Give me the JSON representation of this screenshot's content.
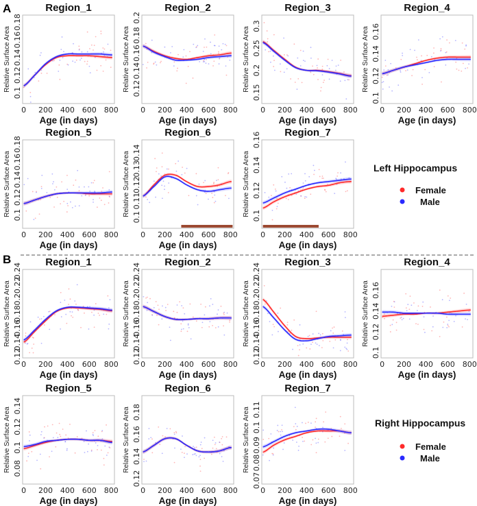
{
  "sections": [
    {
      "label": "A",
      "legend": {
        "title": "Left Hippocampus",
        "items": [
          {
            "label": "Female",
            "color": "#ff2a2a"
          },
          {
            "label": "Male",
            "color": "#2a2aff"
          }
        ]
      }
    },
    {
      "label": "B",
      "legend": {
        "title": "Right Hippocampus",
        "items": [
          {
            "label": "Female",
            "color": "#ff2a2a"
          },
          {
            "label": "Male",
            "color": "#2a2aff"
          }
        ]
      }
    }
  ],
  "chart_data": [
    {
      "type": "line",
      "section": "A",
      "title": "Region_1",
      "xlabel": "Age (in days)",
      "ylabel": "Relative Surface Area",
      "xlim": [
        -10,
        830
      ],
      "xticks": [
        0,
        200,
        400,
        600,
        800
      ],
      "ylim": [
        0.088,
        0.188
      ],
      "yticks": [
        "0.1",
        "0.12",
        "0.14",
        "0.16",
        "0.18"
      ],
      "x": [
        0,
        100,
        200,
        300,
        400,
        500,
        600,
        700,
        800
      ],
      "series": [
        {
          "name": "Female",
          "values": [
            0.108,
            0.12,
            0.132,
            0.14,
            0.142,
            0.142,
            0.142,
            0.141,
            0.14
          ]
        },
        {
          "name": "Male",
          "values": [
            0.108,
            0.12,
            0.133,
            0.141,
            0.144,
            0.144,
            0.144,
            0.144,
            0.143
          ]
        }
      ],
      "significance": null
    },
    {
      "type": "line",
      "section": "A",
      "title": "Region_2",
      "xlabel": "Age (in days)",
      "ylabel": "Relative Surface Area",
      "xlim": [
        -10,
        830
      ],
      "xticks": [
        0,
        200,
        400,
        600,
        800
      ],
      "ylim": [
        0.103,
        0.203
      ],
      "yticks": [
        "0.12",
        "0.14",
        "0.16",
        "0.18",
        "0.2"
      ],
      "x": [
        0,
        100,
        200,
        300,
        400,
        500,
        600,
        700,
        800
      ],
      "series": [
        {
          "name": "Female",
          "values": [
            0.168,
            0.162,
            0.157,
            0.154,
            0.153,
            0.155,
            0.157,
            0.158,
            0.16
          ]
        },
        {
          "name": "Male",
          "values": [
            0.168,
            0.161,
            0.156,
            0.152,
            0.152,
            0.153,
            0.155,
            0.156,
            0.157
          ]
        }
      ],
      "significance": null
    },
    {
      "type": "line",
      "section": "A",
      "title": "Region_3",
      "xlabel": "Age (in days)",
      "ylabel": "Relative Surface Area",
      "xlim": [
        -10,
        830
      ],
      "xticks": [
        0,
        200,
        400,
        600,
        800
      ],
      "ylim": [
        0.125,
        0.325
      ],
      "yticks": [
        "0.15",
        "0.2",
        "0.25",
        "0.3"
      ],
      "x": [
        0,
        100,
        200,
        300,
        400,
        500,
        600,
        700,
        800
      ],
      "series": [
        {
          "name": "Female",
          "values": [
            0.265,
            0.245,
            0.225,
            0.207,
            0.2,
            0.2,
            0.197,
            0.193,
            0.188
          ]
        },
        {
          "name": "Male",
          "values": [
            0.263,
            0.243,
            0.223,
            0.206,
            0.2,
            0.199,
            0.196,
            0.192,
            0.187
          ]
        }
      ],
      "significance": null
    },
    {
      "type": "line",
      "section": "A",
      "title": "Region_4",
      "xlabel": "Age (in days)",
      "ylabel": "Relative Surface Area",
      "xlim": [
        -10,
        830
      ],
      "xticks": [
        0,
        200,
        400,
        600,
        800
      ],
      "ylim": [
        0.095,
        0.175
      ],
      "yticks": [
        "0.1",
        "0.12",
        "0.14",
        "0.16"
      ],
      "x": [
        0,
        100,
        200,
        300,
        400,
        500,
        600,
        700,
        800
      ],
      "series": [
        {
          "name": "Female",
          "values": [
            0.122,
            0.125,
            0.128,
            0.131,
            0.134,
            0.136,
            0.137,
            0.137,
            0.137
          ]
        },
        {
          "name": "Male",
          "values": [
            0.122,
            0.125,
            0.128,
            0.13,
            0.132,
            0.134,
            0.135,
            0.135,
            0.135
          ]
        }
      ],
      "significance": null
    },
    {
      "type": "line",
      "section": "A",
      "title": "Region_5",
      "xlabel": "Age (in days)",
      "ylabel": "Relative Surface Area",
      "xlim": [
        -10,
        830
      ],
      "xticks": [
        0,
        200,
        400,
        600,
        800
      ],
      "ylim": [
        0.085,
        0.185
      ],
      "yticks": [
        "0.1",
        "0.12",
        "0.14",
        "0.16",
        "0.18"
      ],
      "x": [
        0,
        100,
        200,
        300,
        400,
        500,
        600,
        700,
        800
      ],
      "series": [
        {
          "name": "Female",
          "values": [
            0.113,
            0.117,
            0.121,
            0.124,
            0.125,
            0.125,
            0.124,
            0.124,
            0.124
          ]
        },
        {
          "name": "Male",
          "values": [
            0.113,
            0.117,
            0.121,
            0.124,
            0.125,
            0.125,
            0.125,
            0.125,
            0.126
          ]
        }
      ],
      "significance": null
    },
    {
      "type": "line",
      "section": "A",
      "title": "Region_6",
      "xlabel": "Age (in days)",
      "ylabel": "Relative Surface Area",
      "xlim": [
        -10,
        830
      ],
      "xticks": [
        0,
        200,
        400,
        600,
        800
      ],
      "ylim": [
        0.093,
        0.148
      ],
      "yticks": [
        "0.1",
        "0.11",
        "0.12",
        "0.13",
        "0.14"
      ],
      "x": [
        0,
        100,
        200,
        300,
        400,
        500,
        600,
        700,
        800
      ],
      "series": [
        {
          "name": "Female",
          "values": [
            0.113,
            0.12,
            0.126,
            0.126,
            0.122,
            0.119,
            0.119,
            0.12,
            0.122
          ]
        },
        {
          "name": "Male",
          "values": [
            0.113,
            0.119,
            0.125,
            0.124,
            0.12,
            0.117,
            0.116,
            0.117,
            0.118
          ]
        }
      ],
      "significance": [
        350,
        820
      ]
    },
    {
      "type": "line",
      "section": "A",
      "title": "Region_7",
      "xlabel": "Age (in days)",
      "ylabel": "Relative Surface Area",
      "xlim": [
        -10,
        830
      ],
      "xticks": [
        0,
        200,
        400,
        600,
        800
      ],
      "ylim": [
        0.09,
        0.16
      ],
      "yticks": [
        "0.1",
        "0.12",
        "0.14",
        "0.16"
      ],
      "x": [
        0,
        100,
        200,
        300,
        400,
        500,
        600,
        700,
        800
      ],
      "series": [
        {
          "name": "Female",
          "values": [
            0.106,
            0.111,
            0.115,
            0.118,
            0.121,
            0.123,
            0.124,
            0.126,
            0.127
          ]
        },
        {
          "name": "Male",
          "values": [
            0.11,
            0.114,
            0.118,
            0.121,
            0.124,
            0.126,
            0.127,
            0.128,
            0.129
          ]
        }
      ],
      "significance": [
        0,
        510
      ]
    },
    {
      "type": "line",
      "section": "B",
      "title": "Region_1",
      "xlabel": "Age (in days)",
      "ylabel": "Relative Surface Area",
      "xlim": [
        -10,
        830
      ],
      "xticks": [
        0,
        200,
        400,
        600,
        800
      ],
      "ylim": [
        0.118,
        0.242
      ],
      "yticks": [
        "0.12",
        "0.14",
        "0.16",
        "0.18",
        "0.2",
        "0.22",
        "0.24"
      ],
      "x": [
        0,
        100,
        200,
        300,
        400,
        500,
        600,
        700,
        800
      ],
      "series": [
        {
          "name": "Female",
          "values": [
            0.14,
            0.155,
            0.17,
            0.183,
            0.188,
            0.188,
            0.187,
            0.186,
            0.184
          ]
        },
        {
          "name": "Male",
          "values": [
            0.143,
            0.157,
            0.172,
            0.184,
            0.189,
            0.189,
            0.188,
            0.187,
            0.185
          ]
        }
      ],
      "significance": null
    },
    {
      "type": "line",
      "section": "B",
      "title": "Region_2",
      "xlabel": "Age (in days)",
      "ylabel": "Relative Surface Area",
      "xlim": [
        -10,
        830
      ],
      "xticks": [
        0,
        200,
        400,
        600,
        800
      ],
      "ylim": [
        0.118,
        0.242
      ],
      "yticks": [
        "0.12",
        "0.14",
        "0.16",
        "0.18",
        "0.2",
        "0.22",
        "0.24"
      ],
      "x": [
        0,
        100,
        200,
        300,
        400,
        500,
        600,
        700,
        800
      ],
      "series": [
        {
          "name": "Female",
          "values": [
            0.19,
            0.183,
            0.176,
            0.172,
            0.172,
            0.173,
            0.173,
            0.174,
            0.174
          ]
        },
        {
          "name": "Male",
          "values": [
            0.19,
            0.183,
            0.176,
            0.172,
            0.172,
            0.173,
            0.173,
            0.174,
            0.174
          ]
        }
      ],
      "significance": null
    },
    {
      "type": "line",
      "section": "B",
      "title": "Region_3",
      "xlabel": "Age (in days)",
      "ylabel": "Relative Surface Area",
      "xlim": [
        -10,
        830
      ],
      "xticks": [
        0,
        200,
        400,
        600,
        800
      ],
      "ylim": [
        0.118,
        0.242
      ],
      "yticks": [
        "0.12",
        "0.14",
        "0.16",
        "0.18",
        "0.2",
        "0.22",
        "0.24"
      ],
      "x": [
        0,
        100,
        200,
        300,
        400,
        500,
        600,
        700,
        800
      ],
      "series": [
        {
          "name": "Female",
          "values": [
            0.2,
            0.182,
            0.163,
            0.148,
            0.145,
            0.146,
            0.147,
            0.147,
            0.147
          ]
        },
        {
          "name": "Male",
          "values": [
            0.19,
            0.174,
            0.157,
            0.144,
            0.142,
            0.145,
            0.148,
            0.149,
            0.15
          ]
        }
      ],
      "significance": null
    },
    {
      "type": "line",
      "section": "B",
      "title": "Region_4",
      "xlabel": "Age (in days)",
      "ylabel": "Relative Surface Area",
      "xlim": [
        -10,
        830
      ],
      "xticks": [
        0,
        200,
        400,
        600,
        800
      ],
      "ylim": [
        0.095,
        0.18
      ],
      "yticks": [
        "0.1",
        "0.12",
        "0.14",
        "0.16"
      ],
      "x": [
        0,
        100,
        200,
        300,
        400,
        500,
        600,
        700,
        800
      ],
      "series": [
        {
          "name": "Female",
          "values": [
            0.135,
            0.136,
            0.137,
            0.137,
            0.138,
            0.138,
            0.139,
            0.14,
            0.141
          ]
        },
        {
          "name": "Male",
          "values": [
            0.139,
            0.139,
            0.138,
            0.138,
            0.138,
            0.138,
            0.137,
            0.137,
            0.137
          ]
        }
      ],
      "significance": null
    },
    {
      "type": "line",
      "section": "B",
      "title": "Region_5",
      "xlabel": "Age (in days)",
      "ylabel": "Relative Surface Area",
      "xlim": [
        -10,
        830
      ],
      "xticks": [
        0,
        200,
        400,
        600,
        800
      ],
      "ylim": [
        0.065,
        0.15
      ],
      "yticks": [
        "0.08",
        "0.1",
        "0.12",
        "0.14"
      ],
      "x": [
        0,
        100,
        200,
        300,
        400,
        500,
        600,
        700,
        800
      ],
      "series": [
        {
          "name": "Female",
          "values": [
            0.099,
            0.102,
            0.105,
            0.107,
            0.108,
            0.108,
            0.107,
            0.107,
            0.106
          ]
        },
        {
          "name": "Male",
          "values": [
            0.101,
            0.103,
            0.106,
            0.107,
            0.108,
            0.108,
            0.107,
            0.107,
            0.105
          ]
        }
      ],
      "significance": null
    },
    {
      "type": "line",
      "section": "B",
      "title": "Region_6",
      "xlabel": "Age (in days)",
      "ylabel": "Relative Surface Area",
      "xlim": [
        -10,
        830
      ],
      "xticks": [
        0,
        200,
        400,
        600,
        800
      ],
      "ylim": [
        0.115,
        0.195
      ],
      "yticks": [
        "0.12",
        "0.14",
        "0.16",
        "0.18"
      ],
      "x": [
        0,
        100,
        200,
        300,
        400,
        500,
        600,
        700,
        800
      ],
      "series": [
        {
          "name": "Female",
          "values": [
            0.144,
            0.15,
            0.156,
            0.156,
            0.15,
            0.145,
            0.144,
            0.145,
            0.148
          ]
        },
        {
          "name": "Male",
          "values": [
            0.144,
            0.15,
            0.156,
            0.156,
            0.15,
            0.145,
            0.144,
            0.145,
            0.148
          ]
        }
      ],
      "significance": null
    },
    {
      "type": "line",
      "section": "B",
      "title": "Region_7",
      "xlabel": "Age (in days)",
      "ylabel": "Relative Surface Area",
      "xlim": [
        -10,
        830
      ],
      "xticks": [
        0,
        200,
        400,
        600,
        800
      ],
      "ylim": [
        0.068,
        0.118
      ],
      "yticks": [
        "0.07",
        "0.08",
        "0.09",
        "0.1",
        "0.11"
      ],
      "x": [
        0,
        100,
        200,
        300,
        400,
        500,
        600,
        700,
        800
      ],
      "series": [
        {
          "name": "Female",
          "values": [
            0.086,
            0.09,
            0.093,
            0.095,
            0.097,
            0.098,
            0.098,
            0.098,
            0.097
          ]
        },
        {
          "name": "Male",
          "values": [
            0.089,
            0.092,
            0.095,
            0.097,
            0.098,
            0.099,
            0.099,
            0.098,
            0.097
          ]
        }
      ],
      "significance": null
    }
  ]
}
